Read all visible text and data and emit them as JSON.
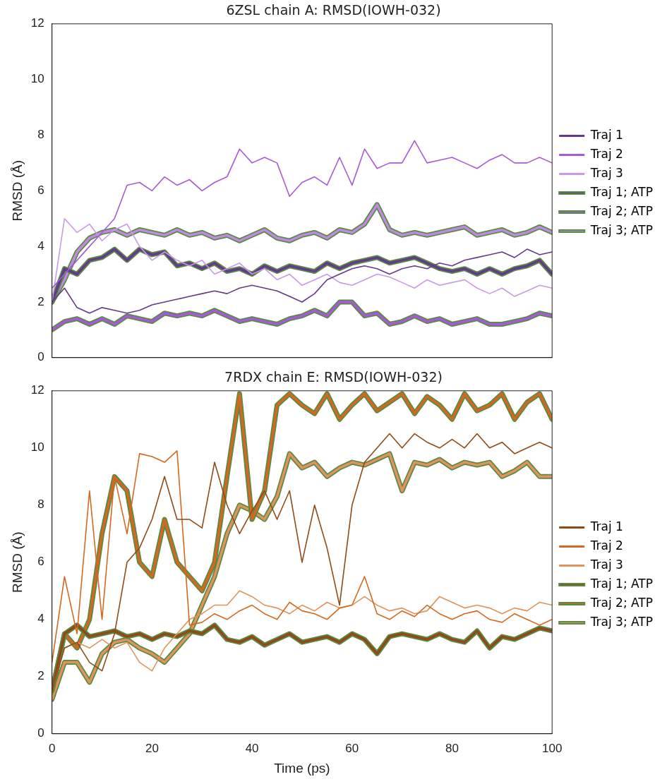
{
  "chart_data": [
    {
      "type": "line",
      "title": "6ZSL chain A: RMSD(IOWH-032)",
      "ylabel": "RMSD (Å)",
      "x": [
        0,
        2.5,
        5,
        7.5,
        10,
        12.5,
        15,
        17.5,
        20,
        22.5,
        25,
        27.5,
        30,
        32.5,
        35,
        37.5,
        40,
        42.5,
        45,
        47.5,
        50,
        52.5,
        55,
        57.5,
        60,
        62.5,
        65,
        67.5,
        70,
        72.5,
        75,
        77.5,
        80,
        82.5,
        85,
        87.5,
        90,
        92.5,
        95,
        97.5,
        100
      ],
      "xlim": [
        0,
        100
      ],
      "xticks": [
        0,
        20,
        40,
        60,
        80,
        100
      ],
      "ylim": [
        0,
        12
      ],
      "yticks": [
        0,
        2,
        4,
        6,
        8,
        10,
        12
      ],
      "tick_labels": "y",
      "grid": false,
      "legend": "right",
      "line_style": "solid",
      "marker": "none",
      "series": [
        {
          "name": "Traj 1",
          "color": "#643a8c",
          "values": [
            2.0,
            2.5,
            1.8,
            1.6,
            1.8,
            1.7,
            1.6,
            1.7,
            1.9,
            2.0,
            2.1,
            2.2,
            2.3,
            2.4,
            2.3,
            2.5,
            2.6,
            2.5,
            2.4,
            2.2,
            2.0,
            2.3,
            2.8,
            3.0,
            3.2,
            3.3,
            3.2,
            3.0,
            3.2,
            3.3,
            3.2,
            3.4,
            3.3,
            3.5,
            3.6,
            3.7,
            3.8,
            3.6,
            3.9,
            3.7,
            3.8
          ]
        },
        {
          "name": "Traj 2",
          "color": "#a55ad6",
          "values": [
            2.5,
            3.0,
            3.5,
            4.0,
            4.5,
            5.0,
            6.2,
            6.3,
            6.0,
            6.5,
            6.2,
            6.4,
            6.0,
            6.3,
            6.5,
            7.5,
            7.0,
            7.2,
            7.0,
            5.8,
            6.3,
            6.5,
            6.2,
            7.2,
            6.2,
            7.5,
            6.8,
            7.0,
            7.0,
            7.8,
            7.0,
            7.1,
            7.2,
            7.0,
            6.8,
            7.1,
            7.3,
            7.0,
            7.0,
            7.2,
            7.0
          ]
        },
        {
          "name": "Traj 3",
          "color": "#c89ae6",
          "values": [
            2.0,
            5.0,
            4.5,
            4.8,
            4.2,
            4.6,
            4.8,
            4.0,
            3.5,
            3.8,
            3.5,
            3.3,
            3.5,
            3.0,
            3.2,
            3.4,
            3.0,
            3.2,
            2.8,
            3.0,
            2.6,
            2.8,
            3.0,
            2.7,
            2.6,
            2.8,
            3.0,
            2.9,
            2.7,
            2.5,
            2.8,
            2.6,
            2.7,
            2.8,
            2.5,
            2.3,
            2.5,
            2.2,
            2.4,
            2.6,
            2.5
          ]
        },
        {
          "name": "Traj 1; ATP",
          "color": "#643a8c",
          "values": [
            2.0,
            3.2,
            3.0,
            3.5,
            3.6,
            3.9,
            3.5,
            3.9,
            3.7,
            3.8,
            3.3,
            3.4,
            3.2,
            3.4,
            3.1,
            3.2,
            3.0,
            3.3,
            3.1,
            3.3,
            3.2,
            3.1,
            3.4,
            3.2,
            3.4,
            3.5,
            3.6,
            3.4,
            3.5,
            3.6,
            3.4,
            3.2,
            3.1,
            3.2,
            3.0,
            3.2,
            3.0,
            3.2,
            3.3,
            3.5,
            3.0
          ]
        },
        {
          "name": "Traj 2; ATP",
          "color": "#a55ad6",
          "values": [
            1.0,
            1.3,
            1.4,
            1.2,
            1.4,
            1.2,
            1.5,
            1.4,
            1.3,
            1.6,
            1.5,
            1.6,
            1.5,
            1.7,
            1.5,
            1.3,
            1.4,
            1.3,
            1.2,
            1.4,
            1.5,
            1.7,
            1.5,
            2.0,
            2.0,
            1.5,
            1.6,
            1.2,
            1.3,
            1.5,
            1.3,
            1.4,
            1.2,
            1.3,
            1.4,
            1.2,
            1.2,
            1.3,
            1.4,
            1.6,
            1.5
          ]
        },
        {
          "name": "Traj 3; ATP",
          "color": "#c08ae0",
          "values": [
            2.0,
            2.8,
            3.8,
            4.3,
            4.5,
            4.6,
            4.4,
            4.6,
            4.5,
            4.4,
            4.6,
            4.4,
            4.5,
            4.3,
            4.4,
            4.2,
            4.4,
            4.6,
            4.3,
            4.2,
            4.4,
            4.5,
            4.3,
            4.6,
            4.5,
            4.8,
            5.5,
            4.6,
            4.4,
            4.5,
            4.4,
            4.5,
            4.6,
            4.7,
            4.4,
            4.5,
            4.6,
            4.4,
            4.5,
            4.7,
            4.5
          ]
        }
      ]
    },
    {
      "type": "line",
      "title": "7RDX chain E: RMSD(IOWH-032)",
      "xlabel": "Time (ps)",
      "ylabel": "RMSD (Å)",
      "x": [
        0,
        2.5,
        5,
        7.5,
        10,
        12.5,
        15,
        17.5,
        20,
        22.5,
        25,
        27.5,
        30,
        32.5,
        35,
        37.5,
        40,
        42.5,
        45,
        47.5,
        50,
        52.5,
        55,
        57.5,
        60,
        62.5,
        65,
        67.5,
        70,
        72.5,
        75,
        77.5,
        80,
        82.5,
        85,
        87.5,
        90,
        92.5,
        95,
        97.5,
        100
      ],
      "xlim": [
        0,
        100
      ],
      "xticks": [
        0,
        20,
        40,
        60,
        80,
        100
      ],
      "ylim": [
        0,
        12
      ],
      "yticks": [
        0,
        2,
        4,
        6,
        8,
        10,
        12
      ],
      "grid": false,
      "legend": "right",
      "line_style": "solid",
      "marker": "none",
      "series": [
        {
          "name": "Traj 1",
          "color": "#8f4a16",
          "values": [
            1.5,
            3.0,
            3.2,
            2.5,
            2.2,
            3.5,
            6.0,
            6.5,
            7.5,
            9.0,
            7.5,
            7.5,
            7.2,
            9.5,
            8.0,
            7.0,
            7.8,
            8.5,
            7.5,
            8.5,
            6.0,
            8.0,
            6.5,
            4.5,
            8.0,
            9.5,
            10.0,
            10.5,
            10.0,
            10.5,
            10.2,
            10.0,
            10.3,
            10.0,
            10.5,
            10.0,
            10.2,
            9.8,
            10.0,
            10.2,
            10.0
          ]
        },
        {
          "name": "Traj 2",
          "color": "#d2691e",
          "values": [
            2.5,
            5.5,
            3.5,
            8.5,
            4.0,
            9.0,
            7.0,
            9.8,
            9.7,
            9.5,
            9.9,
            3.8,
            3.9,
            4.2,
            4.0,
            4.3,
            4.5,
            4.2,
            4.0,
            4.6,
            4.3,
            4.2,
            4.0,
            4.4,
            4.5,
            5.5,
            4.2,
            4.0,
            4.3,
            4.1,
            4.5,
            4.2,
            4.0,
            4.2,
            4.3,
            4.0,
            3.9,
            4.2,
            4.0,
            3.8,
            4.0
          ]
        },
        {
          "name": "Traj 3",
          "color": "#e0935a",
          "values": [
            1.5,
            3.0,
            3.2,
            3.0,
            3.3,
            3.0,
            3.2,
            2.5,
            2.2,
            3.0,
            3.5,
            4.0,
            4.2,
            4.5,
            4.5,
            5.0,
            4.8,
            4.5,
            4.4,
            4.2,
            4.5,
            4.3,
            4.6,
            4.4,
            4.5,
            4.8,
            4.5,
            4.3,
            4.4,
            4.2,
            4.3,
            4.8,
            4.6,
            4.4,
            4.5,
            4.4,
            4.2,
            4.4,
            4.3,
            4.6,
            4.5
          ]
        },
        {
          "name": "Traj 1; ATP",
          "color": "#8f4a16",
          "values": [
            1.5,
            3.5,
            3.8,
            3.4,
            3.5,
            3.6,
            3.4,
            3.5,
            3.3,
            3.5,
            3.4,
            3.6,
            3.5,
            3.8,
            3.3,
            3.2,
            3.4,
            3.1,
            3.3,
            3.5,
            3.2,
            3.3,
            3.4,
            3.2,
            3.5,
            3.3,
            2.8,
            3.4,
            3.5,
            3.4,
            3.3,
            3.5,
            3.3,
            3.2,
            3.6,
            3.0,
            3.4,
            3.3,
            3.5,
            3.7,
            3.6
          ]
        },
        {
          "name": "Traj 2; ATP",
          "color": "#d2691e",
          "values": [
            1.5,
            3.5,
            3.0,
            4.0,
            7.0,
            9.0,
            8.5,
            6.0,
            5.5,
            7.5,
            6.0,
            5.5,
            5.0,
            6.0,
            9.0,
            11.9,
            7.5,
            8.5,
            11.5,
            11.9,
            11.5,
            11.2,
            11.9,
            11.0,
            11.5,
            11.9,
            11.3,
            11.6,
            11.9,
            11.2,
            11.8,
            11.5,
            11.0,
            11.9,
            11.3,
            11.5,
            11.9,
            11.0,
            11.6,
            11.9,
            11.0
          ]
        },
        {
          "name": "Traj 3; ATP",
          "color": "#e0935a",
          "values": [
            1.2,
            2.5,
            2.5,
            1.8,
            2.8,
            3.2,
            3.3,
            3.0,
            2.8,
            2.5,
            3.0,
            3.5,
            4.5,
            5.5,
            7.0,
            8.0,
            7.8,
            7.5,
            8.3,
            9.8,
            9.3,
            9.5,
            9.0,
            9.3,
            9.5,
            9.4,
            9.6,
            9.8,
            8.5,
            9.5,
            9.4,
            9.6,
            9.3,
            9.5,
            9.4,
            9.5,
            9.0,
            9.2,
            9.5,
            9.0,
            9.0
          ]
        }
      ]
    }
  ]
}
